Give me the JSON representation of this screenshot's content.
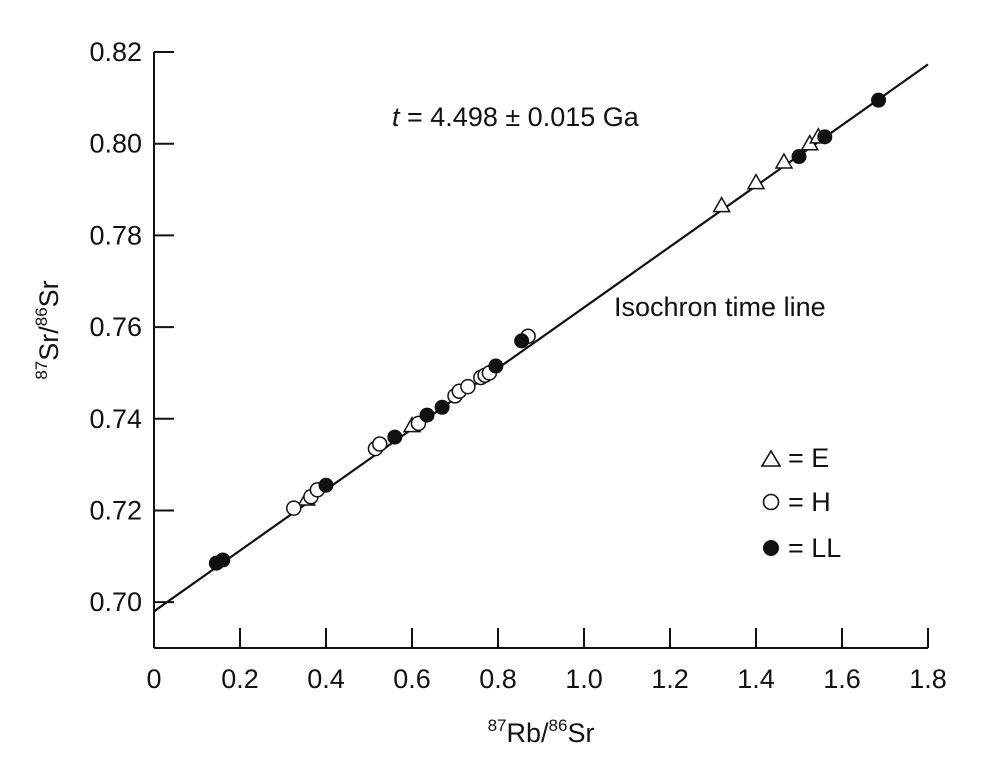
{
  "chart_data": {
    "type": "scatter",
    "annotation": {
      "prefix": "t",
      "text": " = 4.498 ± 0.015 Ga"
    },
    "line_label": "Isochron time line",
    "xlabel": {
      "sup1": "87",
      "main1": "Rb/",
      "sup2": "86",
      "main2": "Sr"
    },
    "ylabel": {
      "sup1": "87",
      "main1": "Sr/",
      "sup2": "86",
      "main2": "Sr"
    },
    "xlim": [
      0,
      1.8
    ],
    "ylim": [
      0.69,
      0.82
    ],
    "xticks": [
      0,
      0.2,
      0.4,
      0.6,
      0.8,
      1.0,
      1.2,
      1.4,
      1.6,
      1.8
    ],
    "xtick_labels": [
      "0",
      "0.2",
      "0.4",
      "0.6",
      "0.8",
      "1.0",
      "1.2",
      "1.4",
      "1.6",
      "1.8"
    ],
    "yticks": [
      0.7,
      0.72,
      0.74,
      0.76,
      0.78,
      0.8,
      0.82
    ],
    "ytick_labels": [
      "0.70",
      "0.72",
      "0.74",
      "0.76",
      "0.78",
      "0.80",
      "0.82"
    ],
    "isochron": {
      "x": [
        0,
        1.8
      ],
      "y": [
        0.698,
        0.8173
      ]
    },
    "legend": [
      {
        "symbol": "triangle",
        "label": "= E"
      },
      {
        "symbol": "open-circle",
        "label": "= H"
      },
      {
        "symbol": "filled-circle",
        "label": "= LL"
      }
    ],
    "series": [
      {
        "name": "E",
        "symbol": "triangle",
        "points": [
          [
            0.355,
            0.7225
          ],
          [
            0.6,
            0.7385
          ],
          [
            1.32,
            0.7865
          ],
          [
            1.4,
            0.7915
          ],
          [
            1.465,
            0.796
          ],
          [
            1.525,
            0.8
          ],
          [
            1.545,
            0.8015
          ]
        ]
      },
      {
        "name": "H",
        "symbol": "open-circle",
        "points": [
          [
            0.325,
            0.7205
          ],
          [
            0.365,
            0.723
          ],
          [
            0.38,
            0.7245
          ],
          [
            0.515,
            0.7335
          ],
          [
            0.525,
            0.7345
          ],
          [
            0.615,
            0.739
          ],
          [
            0.7,
            0.745
          ],
          [
            0.71,
            0.746
          ],
          [
            0.73,
            0.747
          ],
          [
            0.76,
            0.749
          ],
          [
            0.77,
            0.7495
          ],
          [
            0.78,
            0.75
          ],
          [
            0.87,
            0.758
          ]
        ]
      },
      {
        "name": "LL",
        "symbol": "filled-circle",
        "points": [
          [
            0.145,
            0.7085
          ],
          [
            0.16,
            0.7092
          ],
          [
            0.4,
            0.7255
          ],
          [
            0.56,
            0.736
          ],
          [
            0.635,
            0.7408
          ],
          [
            0.67,
            0.7425
          ],
          [
            0.795,
            0.7515
          ],
          [
            0.855,
            0.757
          ],
          [
            1.5,
            0.7972
          ],
          [
            1.56,
            0.8015
          ],
          [
            1.685,
            0.8095
          ]
        ]
      }
    ]
  }
}
